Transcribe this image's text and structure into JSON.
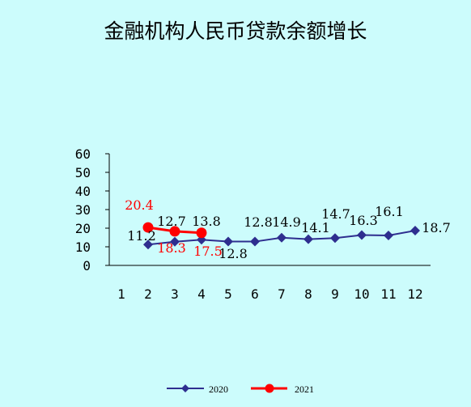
{
  "chart_data": {
    "type": "line",
    "title": "金融机构人民币贷款余额增长",
    "x": [
      "1",
      "2",
      "3",
      "4",
      "5",
      "6",
      "7",
      "8",
      "9",
      "10",
      "11",
      "12"
    ],
    "ylim": [
      0,
      60
    ],
    "yticks": [
      "0",
      "10",
      "20",
      "30",
      "40",
      "50",
      "60"
    ],
    "grid": false,
    "legend_position": "bottom",
    "series": [
      {
        "name": "2020",
        "color": "#2e2e8f",
        "marker": "diamond",
        "x": [
          "2",
          "3",
          "4",
          "5",
          "6",
          "7",
          "8",
          "9",
          "10",
          "11",
          "12"
        ],
        "values": [
          11.2,
          12.7,
          13.8,
          12.8,
          12.8,
          14.9,
          14.1,
          14.7,
          16.3,
          16.1,
          18.7
        ],
        "labels": [
          "11.2",
          "12.7",
          "13.8",
          "12.8",
          "12.8",
          "14.9",
          "14.1",
          "14.7",
          "16.3",
          "16.1",
          "18.7"
        ]
      },
      {
        "name": "2021",
        "color": "#ff0000",
        "marker": "circle",
        "x": [
          "2",
          "3",
          "4"
        ],
        "values": [
          20.4,
          18.3,
          17.5
        ],
        "labels": [
          "20.4",
          "18.3",
          "17.5"
        ]
      }
    ]
  }
}
